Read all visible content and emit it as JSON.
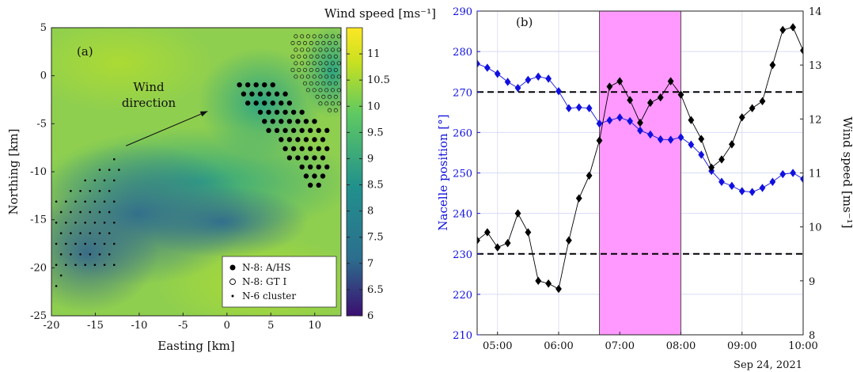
{
  "chart_data": [
    {
      "panel_label": "(a)",
      "type": "heatmap",
      "xlabel": "Easting [km]",
      "ylabel": "Northing [km]",
      "xlim": [
        -20,
        13
      ],
      "ylim": [
        -25,
        5
      ],
      "xticks": [
        -20,
        -15,
        -10,
        -5,
        0,
        5,
        10
      ],
      "yticks": [
        5,
        0,
        -5,
        -10,
        -15,
        -20,
        -25
      ],
      "colorbar": {
        "title": "Wind speed [ms⁻¹]",
        "range": [
          6,
          11.5
        ],
        "ticks": [
          6,
          6.5,
          7,
          7.5,
          8,
          8.5,
          9,
          9.5,
          10,
          10.5,
          11
        ],
        "colors": [
          "#3b0f70",
          "#2c6e8e",
          "#21918c",
          "#5ec962",
          "#c8e020",
          "#fde725"
        ]
      },
      "annotation": {
        "text_line1": "Wind",
        "text_line2": "direction",
        "arrow_from": [
          -11.5,
          -7.3
        ],
        "arrow_to": [
          -2.2,
          -3.7
        ]
      },
      "legend": {
        "position": "bottom-right",
        "entries": [
          "N-8: A/HS",
          "N-8: GT I",
          "N-6 cluster"
        ]
      },
      "regions": [
        {
          "name": "N-8: A/HS",
          "marker": "filled-circle",
          "polygon": [
            [
              0,
              0
            ],
            [
              4.5,
              0
            ],
            [
              7.5,
              -2.5
            ],
            [
              11.5,
              -5.5
            ],
            [
              11.5,
              -10.5
            ],
            [
              10,
              -12
            ],
            [
              0,
              0
            ]
          ]
        },
        {
          "name": "N-8: GT I",
          "marker": "open-circle",
          "polygon": [
            [
              7.5,
              4.8
            ],
            [
              13,
              4.8
            ],
            [
              13,
              -4
            ],
            [
              11.5,
              -4
            ],
            [
              9,
              -1.5
            ],
            [
              7.5,
              0
            ]
          ]
        },
        {
          "name": "N-6 cluster",
          "marker": "dot",
          "polygon": [
            [
              -20,
              -23
            ],
            [
              -19.8,
              -13
            ],
            [
              -12.2,
              -7.6
            ],
            [
              -12.5,
              -20.5
            ],
            [
              -18.5,
              -20.8
            ]
          ]
        }
      ]
    },
    {
      "panel_label": "(b)",
      "type": "line",
      "date_label": "Sep 24, 2021",
      "xticks": [
        "05:00",
        "06:00",
        "07:00",
        "08:00",
        "09:00",
        "10:00"
      ],
      "xlim": [
        "04:40",
        "10:00"
      ],
      "y_left": {
        "label": "Nacelle position [°]",
        "lim": [
          210,
          290
        ],
        "ticks": [
          210,
          220,
          230,
          240,
          250,
          260,
          270,
          280,
          290
        ],
        "color": "#1010e0"
      },
      "y_right": {
        "label": "Wind speed [ms⁻¹]",
        "lim": [
          8,
          14
        ],
        "ticks": [
          8,
          9,
          10,
          11,
          12,
          13,
          14
        ]
      },
      "shaded_interval": {
        "from": "06:40",
        "to": "08:00",
        "color": "#ff99ff"
      },
      "reference_lines_left_axis": [
        270,
        230
      ],
      "series": [
        {
          "name": "Nacelle position [°]",
          "axis": "left",
          "color": "#1010e0",
          "x": [
            "04:40",
            "04:50",
            "05:00",
            "05:10",
            "05:20",
            "05:30",
            "05:40",
            "05:50",
            "06:00",
            "06:10",
            "06:20",
            "06:30",
            "06:40",
            "06:50",
            "07:00",
            "07:10",
            "07:20",
            "07:30",
            "07:40",
            "07:50",
            "08:00",
            "08:10",
            "08:20",
            "08:30",
            "08:40",
            "08:50",
            "09:00",
            "09:10",
            "09:20",
            "09:30",
            "09:40",
            "09:50",
            "10:00"
          ],
          "values": [
            277,
            276,
            274.5,
            272.5,
            271,
            273,
            273.8,
            273.3,
            270.2,
            266,
            266.2,
            266,
            262.2,
            263,
            263.7,
            262.8,
            260.5,
            259.5,
            258.3,
            258.2,
            258.8,
            257,
            254.5,
            250.5,
            247.8,
            246.8,
            245.5,
            245.3,
            246.3,
            247.8,
            249.7,
            250,
            248.5
          ]
        },
        {
          "name": "Wind speed [ms⁻¹]",
          "axis": "right",
          "color": "#000000",
          "x": [
            "04:40",
            "04:50",
            "05:00",
            "05:10",
            "05:20",
            "05:30",
            "05:40",
            "05:50",
            "06:00",
            "06:10",
            "06:20",
            "06:30",
            "06:40",
            "06:50",
            "07:00",
            "07:10",
            "07:20",
            "07:30",
            "07:40",
            "07:50",
            "08:00",
            "08:10",
            "08:20",
            "08:30",
            "08:40",
            "08:50",
            "09:00",
            "09:10",
            "09:20",
            "09:30",
            "09:40",
            "09:50",
            "10:00"
          ],
          "values": [
            9.75,
            9.9,
            9.62,
            9.7,
            10.25,
            9.9,
            9.0,
            8.95,
            8.85,
            9.75,
            10.53,
            10.95,
            11.6,
            12.6,
            12.7,
            12.35,
            11.93,
            12.3,
            12.4,
            12.7,
            12.45,
            11.98,
            11.63,
            11.1,
            11.25,
            11.53,
            12.03,
            12.2,
            12.33,
            13.0,
            13.65,
            13.7,
            13.27
          ]
        }
      ]
    }
  ]
}
